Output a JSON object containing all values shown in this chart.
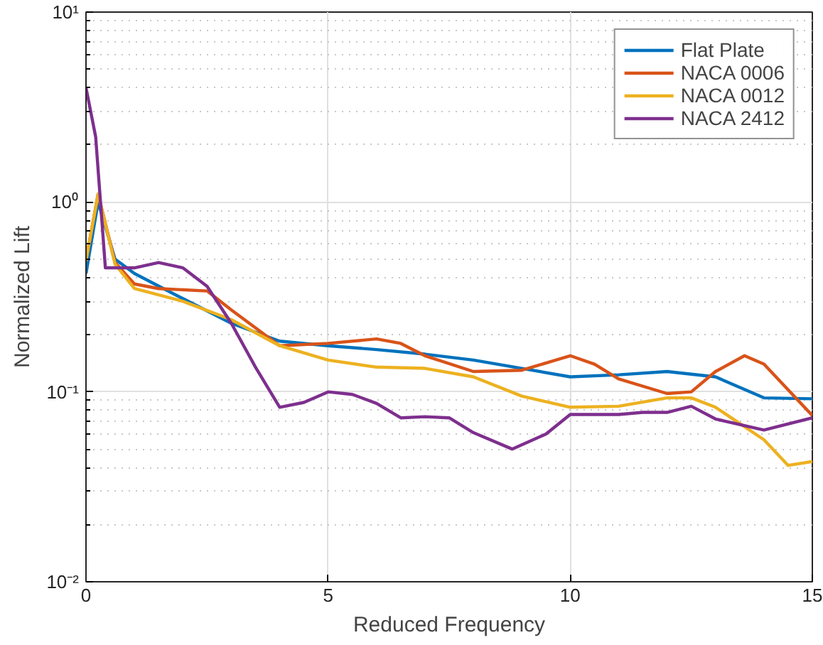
{
  "chart_data": {
    "type": "line",
    "xlabel": "Reduced Frequency",
    "ylabel": "Normalized Lift",
    "log": "y",
    "grid": true,
    "legend": "top right",
    "line_style": "solid",
    "marker": "none",
    "xlim": [
      0,
      15
    ],
    "xticks": [
      0,
      5,
      10,
      15
    ],
    "ylim": [
      0.01,
      10
    ],
    "yticks": [
      {
        "value": 0.01,
        "label": "10⁻²"
      },
      {
        "value": 0.1,
        "label": "10⁻¹"
      },
      {
        "value": 1,
        "label": "10⁰"
      },
      {
        "value": 10,
        "label": "10¹"
      }
    ],
    "series": [
      {
        "name": "Flat Plate",
        "color": "#0072bd",
        "x": [
          0,
          0.25,
          0.6,
          1,
          2,
          3,
          4,
          5,
          6,
          7,
          8,
          9,
          10,
          11,
          12,
          13,
          14,
          15
        ],
        "values": [
          0.42,
          1.0,
          0.5,
          0.42,
          0.31,
          0.23,
          0.185,
          0.175,
          0.167,
          0.158,
          0.147,
          0.133,
          0.12,
          0.123,
          0.128,
          0.12,
          0.093,
          0.092
        ]
      },
      {
        "name": "NACA 0006",
        "color": "#d95319",
        "x": [
          0,
          0.25,
          0.6,
          1,
          1.5,
          2.5,
          3,
          4,
          5,
          6,
          6.5,
          7,
          8,
          9,
          10,
          10.5,
          11,
          12,
          12.5,
          13,
          13.6,
          14,
          15
        ],
        "values": [
          0.49,
          1.1,
          0.48,
          0.37,
          0.35,
          0.34,
          0.27,
          0.175,
          0.18,
          0.19,
          0.18,
          0.155,
          0.128,
          0.13,
          0.155,
          0.14,
          0.117,
          0.098,
          0.1,
          0.128,
          0.155,
          0.14,
          0.075
        ]
      },
      {
        "name": "NACA 0012",
        "color": "#edb120",
        "x": [
          0,
          0.25,
          0.6,
          1,
          2,
          3,
          4,
          5,
          6,
          7,
          8,
          9,
          10,
          11,
          12,
          12.5,
          13,
          14,
          14.5,
          15
        ],
        "values": [
          0.49,
          1.1,
          0.47,
          0.35,
          0.3,
          0.24,
          0.175,
          0.147,
          0.135,
          0.133,
          0.12,
          0.095,
          0.083,
          0.084,
          0.093,
          0.093,
          0.083,
          0.056,
          0.041,
          0.043
        ]
      },
      {
        "name": "NACA 2412",
        "color": "#7e2f8e",
        "x": [
          0,
          0.2,
          0.4,
          1,
          1.5,
          2,
          2.5,
          3,
          3.5,
          4,
          4.5,
          5,
          5.5,
          6,
          6.5,
          7,
          7.5,
          8,
          8.8,
          9.5,
          10,
          11,
          11.5,
          12,
          12.5,
          13,
          14,
          15
        ],
        "values": [
          4.0,
          2.2,
          0.45,
          0.45,
          0.48,
          0.45,
          0.36,
          0.23,
          0.135,
          0.083,
          0.088,
          0.1,
          0.097,
          0.087,
          0.073,
          0.074,
          0.073,
          0.061,
          0.05,
          0.06,
          0.076,
          0.076,
          0.078,
          0.078,
          0.084,
          0.072,
          0.063,
          0.073
        ]
      }
    ]
  }
}
